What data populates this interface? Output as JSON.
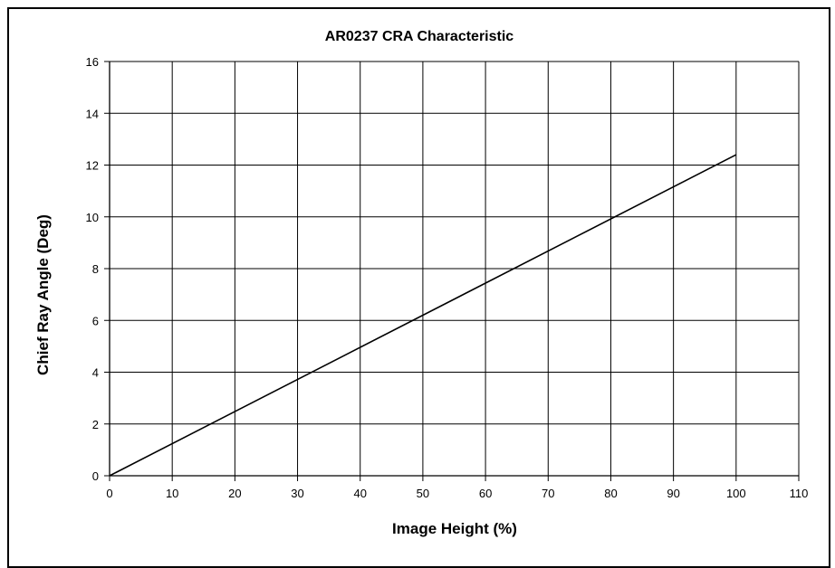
{
  "chart_data": {
    "type": "line",
    "title": "AR0237 CRA Characteristic",
    "xlabel": "Image Height (%)",
    "ylabel": "Chief Ray Angle (Deg)",
    "xlim": [
      0,
      110
    ],
    "ylim": [
      0,
      16
    ],
    "x_ticks": [
      0,
      10,
      20,
      30,
      40,
      50,
      60,
      70,
      80,
      90,
      100,
      110
    ],
    "y_ticks": [
      0,
      2,
      4,
      6,
      8,
      10,
      12,
      14,
      16
    ],
    "grid": true,
    "line_color": "#000000",
    "series": [
      {
        "x": [
          0,
          100
        ],
        "y": [
          0,
          12.4
        ]
      }
    ]
  }
}
